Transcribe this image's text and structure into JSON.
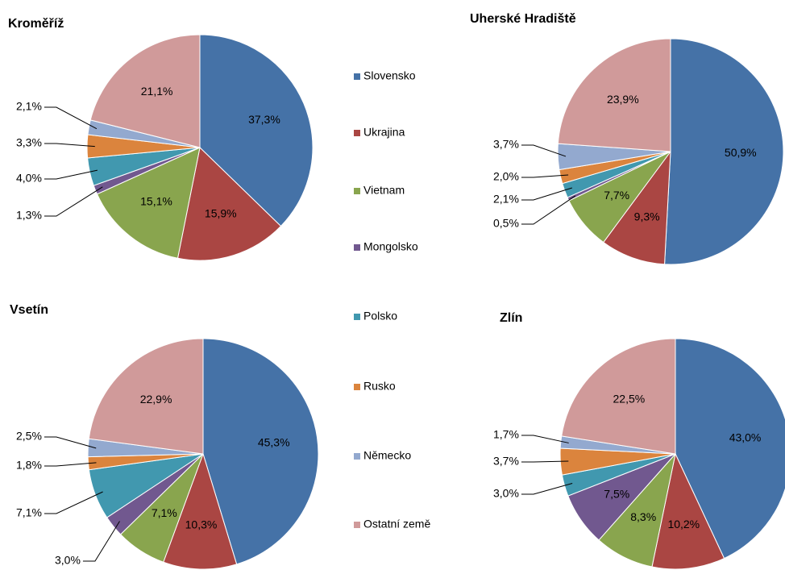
{
  "legend": {
    "labels": [
      "Slovensko",
      "Ukrajina",
      "Vietnam",
      "Mongolsko",
      "Polsko",
      "Rusko",
      "Německo",
      "Ostatní země"
    ],
    "colors": [
      "#4572a7",
      "#aa4643",
      "#89a54e",
      "#71588f",
      "#4198af",
      "#db843d",
      "#93a9cf",
      "#d09a9a"
    ]
  },
  "chart_data": [
    {
      "type": "pie",
      "title": "Kroměříž",
      "values": [
        37.3,
        15.9,
        15.1,
        1.3,
        4.0,
        3.3,
        2.1,
        21.1
      ],
      "value_labels": [
        "37,3%",
        "15,9%",
        "15,1%",
        "1,3%",
        "4,0%",
        "3,3%",
        "2,1%",
        "21,1%"
      ]
    },
    {
      "type": "pie",
      "title": "Uherské Hradiště",
      "values": [
        50.9,
        9.3,
        7.7,
        0.5,
        2.1,
        2.0,
        3.7,
        23.9
      ],
      "value_labels": [
        "50,9%",
        "9,3%",
        "7,7%",
        "0,5%",
        "2,1%",
        "2,0%",
        "3,7%",
        "23,9%"
      ]
    },
    {
      "type": "pie",
      "title": "Vsetín",
      "values": [
        45.3,
        10.3,
        7.1,
        3.0,
        7.1,
        1.8,
        2.5,
        22.9
      ],
      "value_labels": [
        "45,3%",
        "10,3%",
        "7,1%",
        "3,0%",
        "7,1%",
        "1,8%",
        "2,5%",
        "22,9%"
      ]
    },
    {
      "type": "pie",
      "title": "Zlín",
      "values": [
        43.0,
        10.2,
        8.3,
        7.5,
        3.0,
        3.7,
        1.7,
        22.5
      ],
      "value_labels": [
        "43,0%",
        "10,2%",
        "8,3%",
        "7,5%",
        "3,0%",
        "3,7%",
        "1,7%",
        "22,5%"
      ]
    }
  ]
}
